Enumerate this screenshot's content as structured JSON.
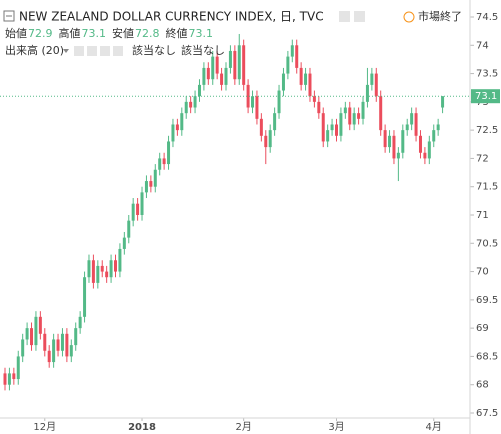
{
  "chart_data": {
    "type": "candlestick",
    "title": "NEW ZEALAND DOLLAR CURRENCY INDEX, 日, TVC",
    "status": "市場終了",
    "ohlc_labels": [
      "始値",
      "高値",
      "安値",
      "終値"
    ],
    "volume_label": "出来高 (20)",
    "volume_values": [
      "該当なし",
      "該当なし"
    ],
    "up_color": "#53b987",
    "down_color": "#eb4d5c",
    "categories": [
      null,
      null,
      null,
      null,
      null,
      null,
      null,
      null,
      null,
      "12月",
      null,
      null,
      null,
      null,
      null,
      null,
      null,
      null,
      null,
      null,
      null,
      null,
      null,
      null,
      null,
      null,
      null,
      null,
      null,
      null,
      null,
      "2018",
      null,
      null,
      null,
      null,
      null,
      null,
      null,
      null,
      null,
      null,
      null,
      null,
      null,
      null,
      null,
      null,
      null,
      null,
      null,
      null,
      null,
      null,
      "2月",
      null,
      null,
      null,
      null,
      null,
      null,
      null,
      null,
      null,
      null,
      null,
      null,
      null,
      null,
      null,
      null,
      null,
      null,
      null,
      null,
      "3月",
      null,
      null,
      null,
      null,
      null,
      null,
      null,
      null,
      null,
      null,
      null,
      null,
      null,
      null,
      null,
      null,
      null,
      null,
      null,
      null,
      null,
      "4月",
      null,
      null
    ],
    "open": [
      68.2,
      68.0,
      68.2,
      68.1,
      68.5,
      68.8,
      69.0,
      68.7,
      69.2,
      68.9,
      68.6,
      68.4,
      68.8,
      68.6,
      68.9,
      68.5,
      68.7,
      69.0,
      69.2,
      69.9,
      70.2,
      69.8,
      70.1,
      70.0,
      69.9,
      70.2,
      70.0,
      70.4,
      70.6,
      70.9,
      71.2,
      71.0,
      71.4,
      71.6,
      71.5,
      71.8,
      72.0,
      71.9,
      72.3,
      72.6,
      72.5,
      72.8,
      73.0,
      72.9,
      73.1,
      73.3,
      73.6,
      73.4,
      73.8,
      73.5,
      73.3,
      73.6,
      73.9,
      73.4,
      74.0,
      73.3,
      72.9,
      73.1,
      72.7,
      72.4,
      72.2,
      72.5,
      72.8,
      73.2,
      73.5,
      73.8,
      74.0,
      73.6,
      73.3,
      73.5,
      73.1,
      73.0,
      72.8,
      72.3,
      72.5,
      72.6,
      72.4,
      72.8,
      72.9,
      72.6,
      72.8,
      72.7,
      73.0,
      73.3,
      73.5,
      73.1,
      72.5,
      72.2,
      72.4,
      72.0,
      72.1,
      72.5,
      72.6,
      72.8,
      72.4,
      72.1,
      72.0,
      72.3,
      72.5,
      72.9
    ],
    "high": [
      68.3,
      68.3,
      68.3,
      68.6,
      68.9,
      69.1,
      69.1,
      69.3,
      69.3,
      69.0,
      68.7,
      68.9,
      68.9,
      69.0,
      69.0,
      68.8,
      69.1,
      69.3,
      70.0,
      70.3,
      70.3,
      70.2,
      70.2,
      70.1,
      70.3,
      70.3,
      70.5,
      70.7,
      71.0,
      71.3,
      71.3,
      71.5,
      71.7,
      71.7,
      71.9,
      72.1,
      72.1,
      72.4,
      72.7,
      72.7,
      72.9,
      73.1,
      73.1,
      73.2,
      73.4,
      73.7,
      73.7,
      73.9,
      73.9,
      73.6,
      73.7,
      74.0,
      74.0,
      74.2,
      74.1,
      73.4,
      73.2,
      73.2,
      72.8,
      72.5,
      72.6,
      72.9,
      73.3,
      73.6,
      73.9,
      74.1,
      74.1,
      73.7,
      73.6,
      73.6,
      73.2,
      73.1,
      72.9,
      72.6,
      72.7,
      72.7,
      72.9,
      73.0,
      73.0,
      72.9,
      72.9,
      73.1,
      73.6,
      73.6,
      73.6,
      73.2,
      72.6,
      72.5,
      72.5,
      72.2,
      72.6,
      72.7,
      72.9,
      72.9,
      72.5,
      72.2,
      72.4,
      72.6,
      72.7,
      73.1
    ],
    "low": [
      67.9,
      67.9,
      68.0,
      68.0,
      68.4,
      68.7,
      68.6,
      68.6,
      68.8,
      68.5,
      68.3,
      68.3,
      68.5,
      68.5,
      68.4,
      68.4,
      68.6,
      68.9,
      69.1,
      69.8,
      69.7,
      69.7,
      69.9,
      69.8,
      69.8,
      69.9,
      69.9,
      70.3,
      70.5,
      70.8,
      70.9,
      70.9,
      71.3,
      71.4,
      71.4,
      71.7,
      71.8,
      71.8,
      72.2,
      72.4,
      72.4,
      72.7,
      72.8,
      72.8,
      73.0,
      73.2,
      73.3,
      73.3,
      73.4,
      73.2,
      73.2,
      73.5,
      73.3,
      73.3,
      73.2,
      72.8,
      72.8,
      72.6,
      72.3,
      71.9,
      72.1,
      72.4,
      72.7,
      73.1,
      73.4,
      73.7,
      73.5,
      73.2,
      73.2,
      73.0,
      72.9,
      72.7,
      72.2,
      72.2,
      72.4,
      72.3,
      72.3,
      72.7,
      72.5,
      72.5,
      72.6,
      72.6,
      72.9,
      73.2,
      73.0,
      72.4,
      72.1,
      72.1,
      71.9,
      71.6,
      72.0,
      72.4,
      72.5,
      72.3,
      72.0,
      71.9,
      71.9,
      72.2,
      72.4,
      72.8
    ],
    "close": [
      68.0,
      68.2,
      68.1,
      68.5,
      68.8,
      69.0,
      68.7,
      69.2,
      68.9,
      68.6,
      68.4,
      68.8,
      68.6,
      68.9,
      68.5,
      68.7,
      69.0,
      69.2,
      69.9,
      70.2,
      69.8,
      70.1,
      70.0,
      69.9,
      70.2,
      70.0,
      70.4,
      70.6,
      70.9,
      71.2,
      71.0,
      71.4,
      71.6,
      71.5,
      71.8,
      72.0,
      71.9,
      72.3,
      72.6,
      72.5,
      72.8,
      73.0,
      72.9,
      73.1,
      73.3,
      73.6,
      73.4,
      73.8,
      73.5,
      73.3,
      73.6,
      73.9,
      73.4,
      74.0,
      73.3,
      72.9,
      73.1,
      72.7,
      72.4,
      72.2,
      72.5,
      72.8,
      73.2,
      73.5,
      73.8,
      74.0,
      73.6,
      73.3,
      73.5,
      73.1,
      73.0,
      72.8,
      72.3,
      72.5,
      72.6,
      72.4,
      72.8,
      72.9,
      72.6,
      72.8,
      72.7,
      73.0,
      73.3,
      73.5,
      73.1,
      72.5,
      72.2,
      72.4,
      72.0,
      72.1,
      72.5,
      72.6,
      72.8,
      72.4,
      72.1,
      72.0,
      72.3,
      72.5,
      72.6,
      73.1
    ],
    "ylim": [
      67.5,
      74.5
    ],
    "yticks": [
      67.5,
      68.0,
      68.5,
      69.0,
      69.5,
      70.0,
      70.5,
      71.0,
      71.5,
      72.0,
      72.5,
      73.0,
      73.5,
      74.0,
      74.5
    ]
  }
}
